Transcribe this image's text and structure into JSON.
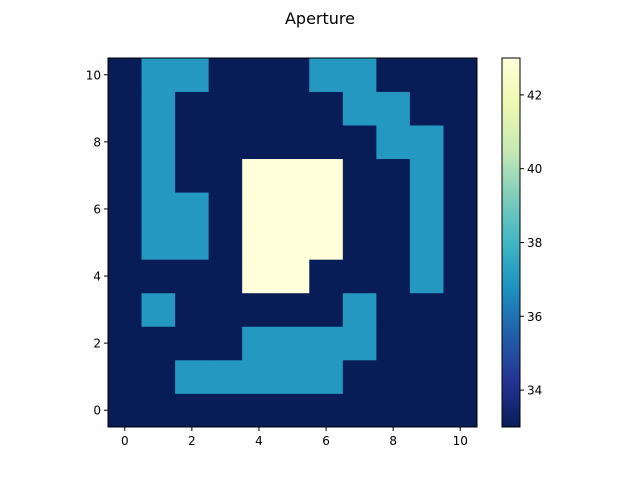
{
  "chart_data": {
    "type": "heatmap",
    "title": "Aperture",
    "xlabel": "",
    "ylabel": "",
    "origin": "lower",
    "x": [
      0,
      1,
      2,
      3,
      4,
      5,
      6,
      7,
      8,
      9,
      10
    ],
    "y": [
      0,
      1,
      2,
      3,
      4,
      5,
      6,
      7,
      8,
      9,
      10
    ],
    "x_ticks": [
      0,
      2,
      4,
      6,
      8,
      10
    ],
    "y_ticks": [
      0,
      2,
      4,
      6,
      8,
      10
    ],
    "xlim": [
      -0.5,
      10.5
    ],
    "ylim": [
      -0.5,
      10.5
    ],
    "colormap": "YlGnBu",
    "colorbar": {
      "min": 33,
      "max": 43,
      "ticks": [
        34,
        36,
        38,
        40,
        42
      ]
    },
    "z": [
      [
        33,
        33,
        33,
        33,
        33,
        33,
        33,
        33,
        33,
        33,
        33
      ],
      [
        33,
        33,
        37,
        37,
        37,
        37,
        37,
        33,
        33,
        33,
        33
      ],
      [
        33,
        33,
        33,
        33,
        37,
        37,
        37,
        37,
        33,
        33,
        33
      ],
      [
        33,
        37,
        33,
        33,
        33,
        33,
        33,
        37,
        33,
        33,
        33
      ],
      [
        33,
        33,
        33,
        33,
        43,
        43,
        33,
        33,
        33,
        37,
        33
      ],
      [
        33,
        37,
        37,
        33,
        43,
        43,
        43,
        33,
        33,
        37,
        33
      ],
      [
        33,
        37,
        37,
        33,
        43,
        43,
        43,
        33,
        33,
        37,
        33
      ],
      [
        33,
        37,
        33,
        33,
        43,
        43,
        43,
        33,
        33,
        37,
        33
      ],
      [
        33,
        37,
        33,
        33,
        33,
        33,
        33,
        33,
        37,
        37,
        33
      ],
      [
        33,
        37,
        33,
        33,
        33,
        33,
        33,
        37,
        37,
        33,
        33
      ],
      [
        33,
        37,
        37,
        33,
        33,
        33,
        37,
        37,
        33,
        33,
        33
      ]
    ]
  }
}
